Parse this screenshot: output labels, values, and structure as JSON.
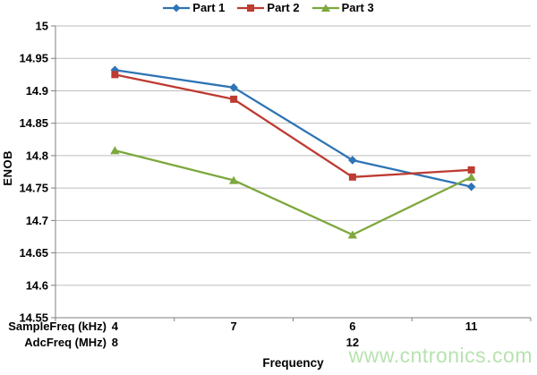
{
  "chart_data": {
    "type": "line",
    "title": "",
    "xlabel": "Frequency",
    "ylabel": "ENOB",
    "ylim": [
      14.55,
      15
    ],
    "y_step": 0.05,
    "grid": true,
    "legend_position": "top",
    "x_axis_rows": [
      {
        "label": "SampleFreq (kHz)",
        "values": [
          "4",
          "7",
          "6",
          "11"
        ]
      },
      {
        "label": "AdcFreq (MHz)",
        "values": [
          "8",
          "",
          "12",
          ""
        ]
      }
    ],
    "series": [
      {
        "name": "Part 1",
        "marker": "diamond",
        "color": "#2e74b5",
        "values": [
          14.932,
          14.905,
          14.793,
          14.752
        ]
      },
      {
        "name": "Part 2",
        "marker": "square",
        "color": "#be3b31",
        "values": [
          14.925,
          14.887,
          14.767,
          14.778
        ]
      },
      {
        "name": "Part 3",
        "marker": "triangle",
        "color": "#7da83d",
        "values": [
          14.808,
          14.762,
          14.678,
          14.767
        ]
      }
    ]
  },
  "watermark": {
    "text": "www.cntronics.com",
    "color": "#b7e3af"
  },
  "colors": {
    "gridline": "#bdbdbd",
    "axis": "#7f7f7f",
    "text": "#000000"
  }
}
